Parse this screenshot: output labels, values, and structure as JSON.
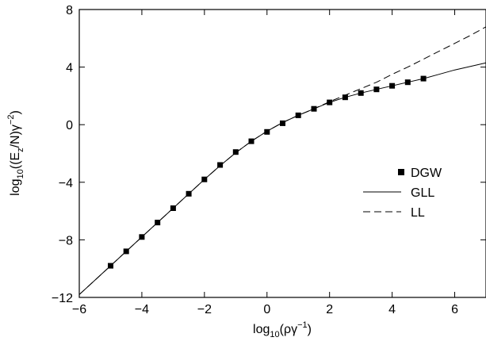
{
  "chart_data": {
    "type": "line",
    "xlabel": {
      "base": "log",
      "sub": "10",
      "main": "(ργ",
      "sup": "−1",
      "end": ")"
    },
    "ylabel": {
      "base": "log",
      "sub": "10",
      "p1": "((E",
      "sub2": "z",
      "p2": "/N)γ",
      "sup": "−2",
      "end": ")"
    },
    "xlim": [
      -6,
      7
    ],
    "ylim": [
      -12,
      8
    ],
    "xticks": [
      -6,
      -4,
      -2,
      0,
      2,
      4,
      6
    ],
    "yticks": [
      -12,
      -8,
      -4,
      0,
      4,
      8
    ],
    "xtick_labels": [
      "−6",
      "−4",
      "−2",
      "0",
      "2",
      "4",
      "6"
    ],
    "ytick_labels": [
      "−12",
      "−8",
      "−4",
      "0",
      "4",
      "8"
    ],
    "grid": false,
    "legend_placement": "right-center",
    "series": [
      {
        "name": "DGW",
        "style": "markers",
        "marker": "square",
        "x": [
          -5.0,
          -4.5,
          -4.0,
          -3.5,
          -3.0,
          -2.5,
          -2.0,
          -1.5,
          -1.0,
          -0.5,
          0.0,
          0.5,
          1.0,
          1.5,
          2.0,
          2.5,
          3.0,
          3.5,
          4.0,
          4.5,
          5.0
        ],
        "y": [
          -9.8,
          -8.8,
          -7.8,
          -6.8,
          -5.8,
          -4.8,
          -3.8,
          -2.8,
          -1.9,
          -1.15,
          -0.5,
          0.1,
          0.65,
          1.1,
          1.55,
          1.9,
          2.2,
          2.45,
          2.7,
          2.95,
          3.2
        ]
      },
      {
        "name": "GLL",
        "style": "solid",
        "x": [
          -6.0,
          -5.0,
          -4.0,
          -3.0,
          -2.0,
          -1.5,
          -1.0,
          -0.5,
          0.0,
          0.5,
          1.0,
          1.5,
          2.0,
          2.5,
          3.0,
          3.5,
          4.0,
          4.5,
          5.0,
          5.5,
          6.0,
          6.5,
          7.0
        ],
        "y": [
          -11.8,
          -9.8,
          -7.8,
          -5.8,
          -3.8,
          -2.85,
          -1.95,
          -1.15,
          -0.45,
          0.15,
          0.65,
          1.1,
          1.55,
          1.9,
          2.2,
          2.45,
          2.7,
          2.95,
          3.2,
          3.5,
          3.8,
          4.05,
          4.3
        ]
      },
      {
        "name": "LL",
        "style": "dashed",
        "x": [
          -6.0,
          -5.0,
          -4.0,
          -3.0,
          -2.0,
          -1.5,
          -1.0,
          -0.5,
          0.0,
          0.5,
          1.0,
          1.5,
          2.0,
          2.5,
          3.0,
          3.5,
          4.0,
          4.5,
          5.0,
          5.5,
          6.0,
          6.5,
          7.0
        ],
        "y": [
          -11.8,
          -9.8,
          -7.8,
          -5.8,
          -3.8,
          -2.85,
          -1.95,
          -1.15,
          -0.45,
          0.15,
          0.65,
          1.1,
          1.6,
          2.05,
          2.5,
          2.95,
          3.5,
          4.0,
          4.55,
          5.1,
          5.65,
          6.2,
          6.8
        ]
      }
    ]
  }
}
